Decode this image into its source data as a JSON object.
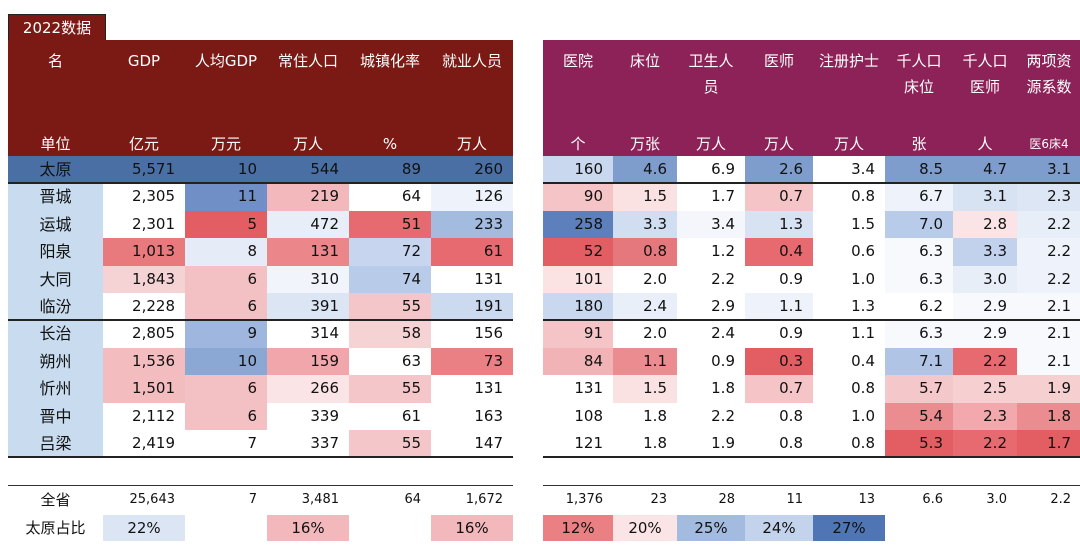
{
  "tag": "2022数据",
  "colors": {
    "red_header": "#7b1a14",
    "purple_header": "#8c2257",
    "city_col": "#c8dbef",
    "taiyuan_row": "#4a6fa5"
  },
  "headers": [
    {
      "name": "名",
      "unit": "单位",
      "group": "red"
    },
    {
      "name": "GDP",
      "unit": "亿元",
      "group": "red"
    },
    {
      "name": "人均GDP",
      "unit": "万元",
      "group": "red"
    },
    {
      "name": "常住人口",
      "unit": "万人",
      "group": "red"
    },
    {
      "name": "城镇化率",
      "unit": "%",
      "group": "red"
    },
    {
      "name": "就业人员",
      "unit": "万人",
      "group": "red"
    },
    {
      "name": "",
      "unit": "",
      "group": "gap"
    },
    {
      "name": "医院",
      "unit": "个",
      "group": "purple"
    },
    {
      "name": "床位",
      "unit": "万张",
      "group": "purple"
    },
    {
      "name": "卫生人员",
      "unit": "万人",
      "group": "purple"
    },
    {
      "name": "医师",
      "unit": "万人",
      "group": "purple"
    },
    {
      "name": "注册护士",
      "unit": "万人",
      "group": "purple"
    },
    {
      "name": "千人口床位",
      "unit": "张",
      "group": "purple"
    },
    {
      "name": "千人口医师",
      "unit": "人",
      "group": "purple"
    },
    {
      "name": "两项资源系数",
      "unit": "医6床4",
      "group": "purple"
    }
  ],
  "rows": [
    {
      "city": "太原",
      "v": [
        "5,571",
        "10",
        "544",
        "89",
        "260",
        "",
        "160",
        "4.6",
        "6.9",
        "2.6",
        "3.4",
        "8.5",
        "4.7",
        "3.1"
      ],
      "c": [
        "#4a6fa5",
        "#4a6fa5",
        "#4a6fa5",
        "#4a6fa5",
        "#4a6fa5",
        "#ffffff",
        "#c9d8ee",
        "#7e9ccc",
        "#ffffff",
        "#7e9ccc",
        "#ffffff",
        "#7e9ccc",
        "#7e9ccc",
        "#7e9ccc"
      ]
    },
    {
      "city": "晋城",
      "v": [
        "2,305",
        "11",
        "219",
        "64",
        "126",
        "",
        "90",
        "1.5",
        "1.7",
        "0.7",
        "0.8",
        "6.7",
        "3.1",
        "2.3"
      ],
      "c": [
        "#ffffff",
        "#6f8fc6",
        "#f2b8bc",
        "#ffffff",
        "#eef2fa",
        "#ffffff",
        "#f4c4c7",
        "#fae2e3",
        "#ffffff",
        "#f4c4c7",
        "#ffffff",
        "#eef2fa",
        "#d7e2f3",
        "#dde6f4"
      ]
    },
    {
      "city": "运城",
      "v": [
        "2,301",
        "5",
        "472",
        "51",
        "233",
        "",
        "258",
        "3.3",
        "3.4",
        "1.3",
        "1.5",
        "7.0",
        "2.8",
        "2.2"
      ],
      "c": [
        "#ffffff",
        "#e35e63",
        "#e8eef8",
        "#e66a6f",
        "#a4bbe0",
        "#ffffff",
        "#5d80bd",
        "#d1def1",
        "#f4f6fb",
        "#d7e2f3",
        "#ffffff",
        "#b8cbe8",
        "#fbe4e5",
        "#e8eef8"
      ]
    },
    {
      "city": "阳泉",
      "v": [
        "1,013",
        "8",
        "131",
        "72",
        "61",
        "",
        "52",
        "0.8",
        "1.2",
        "0.4",
        "0.6",
        "6.3",
        "3.3",
        "2.2"
      ],
      "c": [
        "#e8797d",
        "#e5ecf7",
        "#eb878b",
        "#c7d6ee",
        "#e66a6f",
        "#ffffff",
        "#e35e63",
        "#e5787c",
        "#ffffff",
        "#e66a6f",
        "#ffffff",
        "#f7f9fd",
        "#c2d2ec",
        "#eef2fa"
      ]
    },
    {
      "city": "大同",
      "v": [
        "1,843",
        "6",
        "310",
        "74",
        "131",
        "",
        "101",
        "2.0",
        "2.2",
        "0.9",
        "1.0",
        "6.3",
        "3.0",
        "2.2"
      ],
      "c": [
        "#f5d2d4",
        "#f3c1c4",
        "#f1f4fa",
        "#b8cbe8",
        "#ffffff",
        "#ffffff",
        "#fbe3e4",
        "#ffffff",
        "#ffffff",
        "#ffffff",
        "#ffffff",
        "#f7f9fd",
        "#e8eef8",
        "#eef2fa"
      ]
    },
    {
      "city": "临汾",
      "v": [
        "2,228",
        "6",
        "391",
        "55",
        "191",
        "",
        "180",
        "2.4",
        "2.9",
        "1.1",
        "1.3",
        "6.2",
        "2.9",
        "2.1"
      ],
      "c": [
        "#ffffff",
        "#f3c1c4",
        "#dbe5f4",
        "#f5c6c9",
        "#ccdaf0",
        "#ffffff",
        "#c9d8ee",
        "#e9eff8",
        "#ffffff",
        "#eef2fa",
        "#ffffff",
        "#ffffff",
        "#f7f9fd",
        "#f7f9fd"
      ]
    },
    {
      "city": "长治",
      "v": [
        "2,805",
        "9",
        "314",
        "58",
        "156",
        "",
        "91",
        "2.0",
        "2.4",
        "0.9",
        "1.1",
        "6.3",
        "2.9",
        "2.1"
      ],
      "c": [
        "#ffffff",
        "#9fb6de",
        "#ffffff",
        "#f5d2d4",
        "#ffffff",
        "#ffffff",
        "#f4c4c7",
        "#ffffff",
        "#ffffff",
        "#ffffff",
        "#ffffff",
        "#f7f9fd",
        "#f7f9fd",
        "#f7f9fd"
      ]
    },
    {
      "city": "朔州",
      "v": [
        "1,536",
        "10",
        "159",
        "63",
        "73",
        "",
        "84",
        "1.1",
        "0.9",
        "0.3",
        "0.4",
        "7.1",
        "2.2",
        "2.1"
      ],
      "c": [
        "#f3bdc0",
        "#8ba7d4",
        "#f0a6aa",
        "#ffffff",
        "#ea7f84",
        "#ffffff",
        "#f2b3b7",
        "#eb8c90",
        "#ffffff",
        "#e35e63",
        "#ffffff",
        "#b0c4e5",
        "#e66a6f",
        "#f7f9fd"
      ]
    },
    {
      "city": "忻州",
      "v": [
        "1,501",
        "6",
        "266",
        "55",
        "131",
        "",
        "131",
        "1.5",
        "1.8",
        "0.7",
        "0.8",
        "5.7",
        "2.5",
        "1.9"
      ],
      "c": [
        "#f3bdc0",
        "#f3c1c4",
        "#fbe4e5",
        "#f5c6c9",
        "#ffffff",
        "#ffffff",
        "#ffffff",
        "#fae2e3",
        "#ffffff",
        "#f4c4c7",
        "#ffffff",
        "#f4c8ca",
        "#f6cfd1",
        "#f6cfd1"
      ]
    },
    {
      "city": "晋中",
      "v": [
        "2,112",
        "6",
        "339",
        "61",
        "163",
        "",
        "108",
        "1.8",
        "2.2",
        "0.8",
        "1.0",
        "5.4",
        "2.3",
        "1.8"
      ],
      "c": [
        "#ffffff",
        "#f3c1c4",
        "#ffffff",
        "#ffffff",
        "#ffffff",
        "#ffffff",
        "#ffffff",
        "#ffffff",
        "#ffffff",
        "#ffffff",
        "#ffffff",
        "#ea8c90",
        "#f2a8ac",
        "#ea8c90"
      ]
    },
    {
      "city": "吕梁",
      "v": [
        "2,419",
        "7",
        "337",
        "55",
        "147",
        "",
        "121",
        "1.8",
        "1.9",
        "0.8",
        "0.8",
        "5.3",
        "2.2",
        "1.7"
      ],
      "c": [
        "#ffffff",
        "#ffffff",
        "#ffffff",
        "#f5c6c9",
        "#ffffff",
        "#ffffff",
        "#ffffff",
        "#ffffff",
        "#ffffff",
        "#ffffff",
        "#ffffff",
        "#e35e63",
        "#e66a6f",
        "#e35e63"
      ]
    }
  ],
  "total": {
    "label": "全省",
    "v": [
      "25,643",
      "7",
      "3,481",
      "64",
      "1,672",
      "",
      "1,376",
      "23",
      "28",
      "11",
      "13",
      "6.6",
      "3.0",
      "2.2"
    ]
  },
  "share": {
    "label": "太原占比",
    "v": [
      "22%",
      "",
      "16%",
      "",
      "16%",
      "",
      "12%",
      "20%",
      "25%",
      "24%",
      "27%",
      "",
      "",
      ""
    ],
    "c": [
      "#dbe5f4",
      "#ffffff",
      "#f2b8bc",
      "#ffffff",
      "#f2b8bc",
      "#ffffff",
      "#ea7f84",
      "#fbe4e5",
      "#a4bbe0",
      "#c4d3ec",
      "#4f75b5",
      "#ffffff",
      "#ffffff",
      "#ffffff"
    ]
  }
}
